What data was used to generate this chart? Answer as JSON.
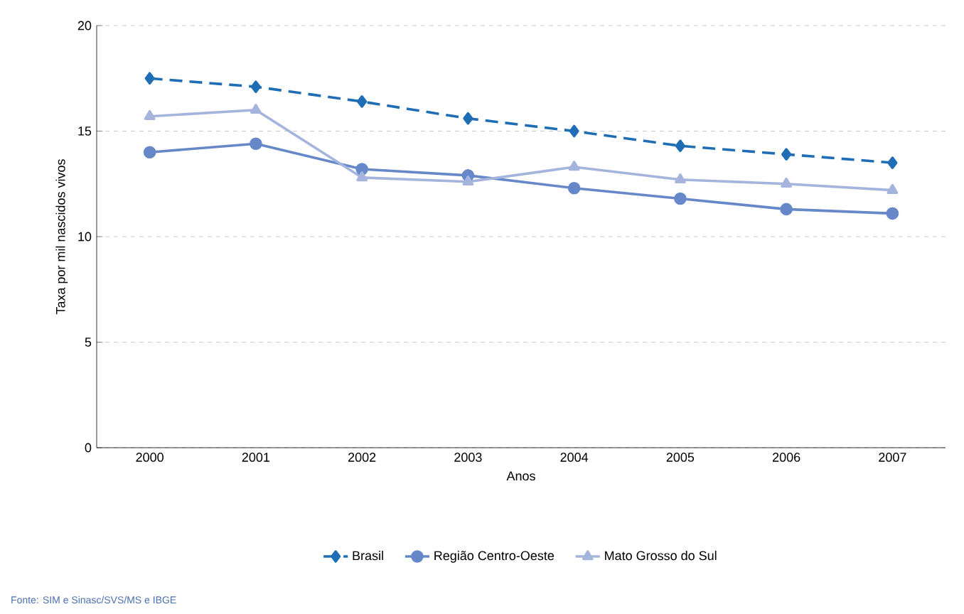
{
  "chart_data": {
    "type": "line",
    "xlabel": "Anos",
    "ylabel": "Taxa por mil nascidos vivos",
    "categories": [
      "2000",
      "2001",
      "2002",
      "2003",
      "2004",
      "2005",
      "2006",
      "2007"
    ],
    "series": [
      {
        "name": "Brasil",
        "color": "#1f6db5",
        "marker": "diamond",
        "line_style": "dashed",
        "values": [
          17.5,
          17.1,
          16.4,
          15.6,
          15.0,
          14.3,
          13.9,
          13.5
        ]
      },
      {
        "name": "Região Centro-Oeste",
        "color": "#6688c8",
        "marker": "circle",
        "line_style": "solid",
        "values": [
          14.0,
          14.4,
          13.2,
          12.9,
          12.3,
          11.8,
          11.3,
          11.1
        ]
      },
      {
        "name": "Mato Grosso do Sul",
        "color": "#a4b4dc",
        "marker": "triangle",
        "line_style": "solid",
        "values": [
          15.7,
          16.0,
          12.8,
          12.6,
          13.3,
          12.7,
          12.5,
          12.2
        ]
      }
    ],
    "ylim": [
      0,
      20
    ],
    "yticks": [
      0,
      5,
      10,
      15,
      20
    ],
    "grid": "y",
    "legend": "bottom",
    "annotations": [
      "Fonte: SIM e Sinasc/SVS/MS e IBGE"
    ]
  }
}
